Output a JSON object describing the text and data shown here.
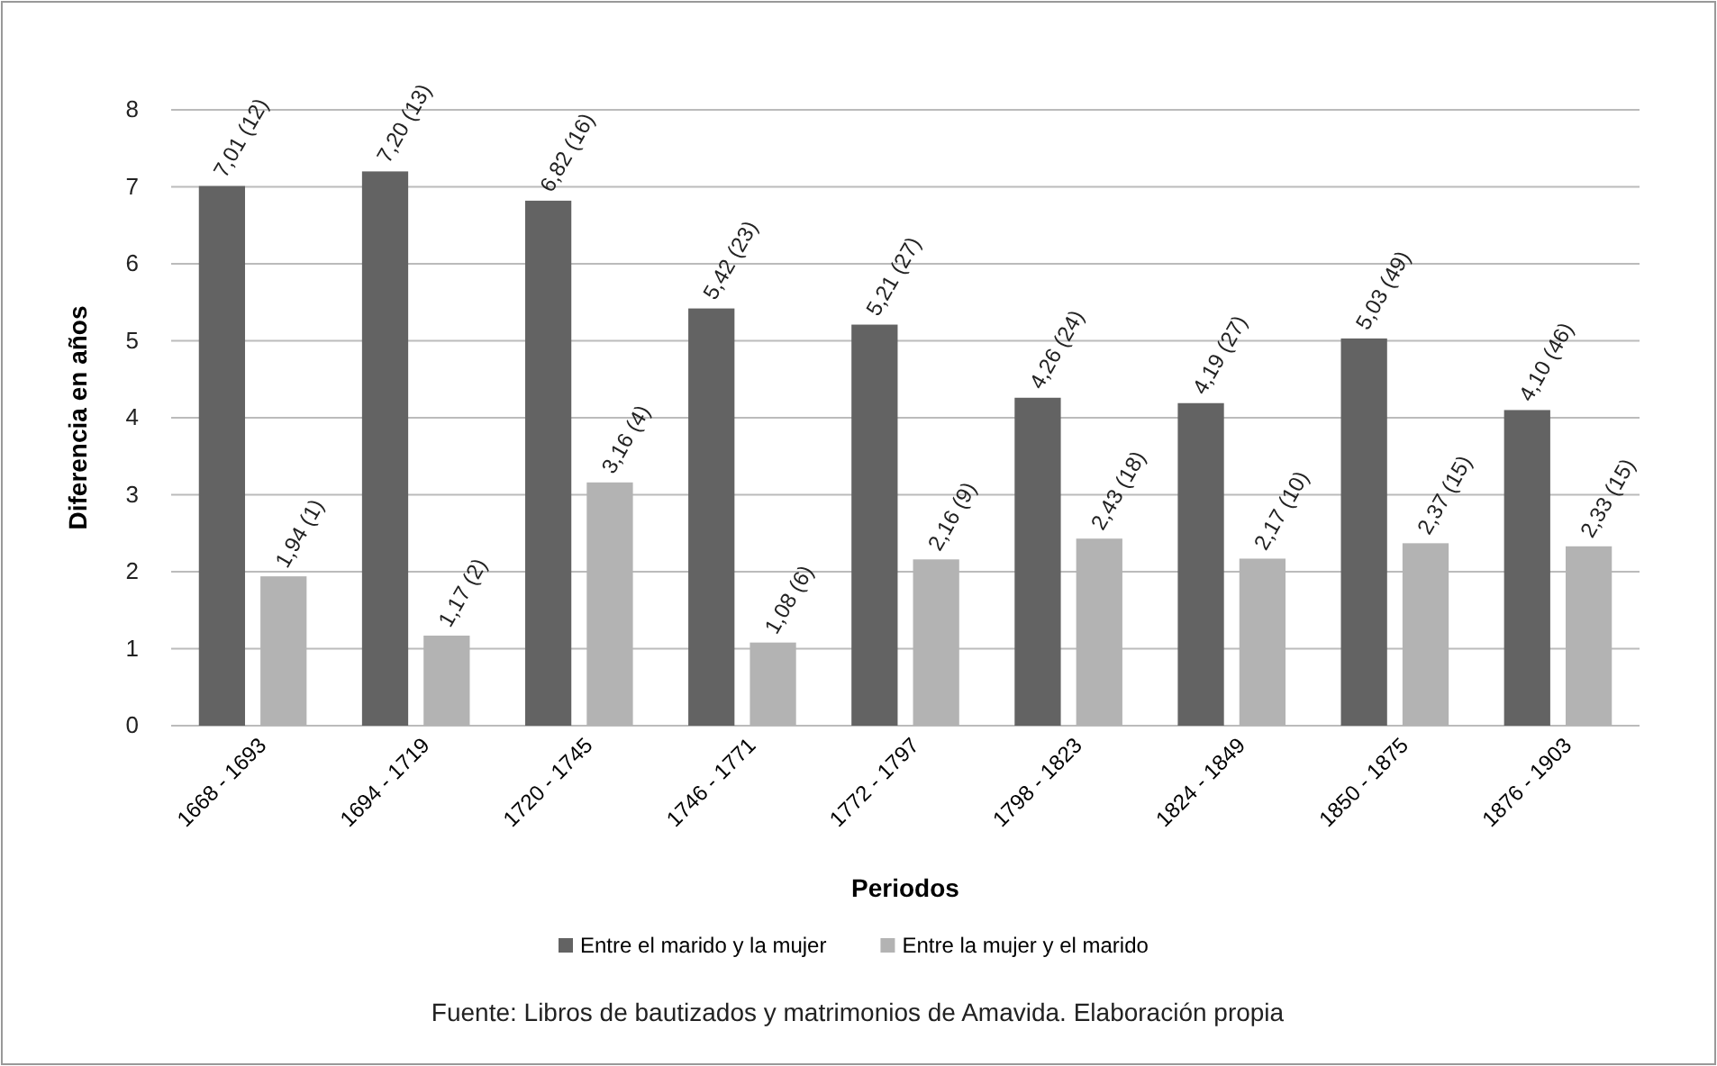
{
  "chart_data": {
    "type": "bar",
    "xlabel": "Periodos",
    "ylabel": "Diferencia en años",
    "categories": [
      "1668 - 1693",
      "1694 - 1719",
      "1720 - 1745",
      "1746 - 1771",
      "1772 - 1797",
      "1798 - 1823",
      "1824 - 1849",
      "1850 - 1875",
      "1876 - 1903"
    ],
    "series": [
      {
        "name": "Entre el marido y la mujer",
        "color": "#636363",
        "values": [
          7.01,
          7.2,
          6.82,
          5.42,
          5.21,
          4.26,
          4.19,
          5.03,
          4.1
        ],
        "value_labels": [
          "7,01 (12)",
          "7,20 (13)",
          "6,82 (16)",
          "5,42 (23)",
          "5,21 (27)",
          "4,26 (24)",
          "4,19 (27)",
          "5,03 (49)",
          "4,10 (46)"
        ]
      },
      {
        "name": "Entre la mujer y el marido",
        "color": "#b3b3b3",
        "values": [
          1.94,
          1.17,
          3.16,
          1.08,
          2.16,
          2.43,
          2.17,
          2.37,
          2.33
        ],
        "value_labels": [
          "1,94 (1)",
          "1,17 (2)",
          "3,16 (4)",
          "1,08 (6)",
          "2,16 (9)",
          "2,43 (18)",
          "2,17 (10)",
          "2,37 (15)",
          "2,33 (15)"
        ]
      }
    ],
    "ylim": [
      0,
      8
    ],
    "yticks": [
      0,
      1,
      2,
      3,
      4,
      5,
      6,
      7,
      8
    ],
    "grid": "y",
    "legend": "bottom",
    "annotations": [
      "Fuente: Libros de bautizados y matrimonios de Amavida. Elaboración propia"
    ]
  }
}
